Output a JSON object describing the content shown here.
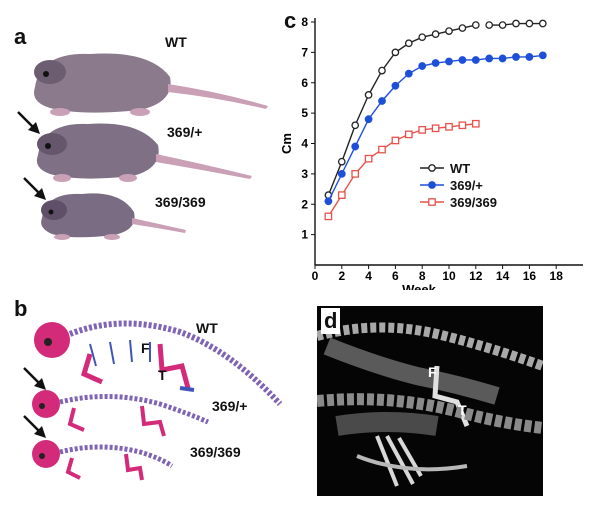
{
  "panels": {
    "a": {
      "letter": "a",
      "labels": [
        "WT",
        "369/+",
        "369/369"
      ]
    },
    "b": {
      "letter": "b",
      "labels": [
        "WT",
        "369/+",
        "369/369"
      ],
      "bone_F": "F",
      "bone_T": "T"
    },
    "c": {
      "letter": "c"
    },
    "d": {
      "letter": "d",
      "bone_F": "F",
      "bone_T": "T"
    }
  },
  "colors": {
    "wt": "#222222",
    "het": "#1e4fd8",
    "hom": "#e8524a",
    "bone": "#d42a7a",
    "cartilage": "#3f56b8"
  },
  "chart_data": {
    "type": "line",
    "xlabel": "Week",
    "ylabel": "Cm",
    "xlim": [
      0,
      20
    ],
    "ylim": [
      0,
      8
    ],
    "xticks": [
      0,
      2,
      4,
      6,
      8,
      10,
      12,
      14,
      16,
      18
    ],
    "yticks": [
      1,
      2,
      3,
      4,
      5,
      6,
      7,
      8
    ],
    "legend_position": "center",
    "series": [
      {
        "name": "WT",
        "marker": "open-circle",
        "color": "#222222",
        "segments": [
          {
            "x": [
              1,
              2,
              3,
              4,
              5,
              6,
              7,
              8,
              9,
              10,
              11,
              12
            ],
            "y": [
              2.3,
              3.4,
              4.6,
              5.6,
              6.4,
              7.0,
              7.3,
              7.5,
              7.6,
              7.7,
              7.8,
              7.9
            ]
          },
          {
            "x": [
              13,
              14,
              15,
              16,
              17
            ],
            "y": [
              7.9,
              7.9,
              7.95,
              7.95,
              7.95
            ]
          }
        ]
      },
      {
        "name": "369/+",
        "marker": "filled-circle",
        "color": "#1e4fd8",
        "segments": [
          {
            "x": [
              1,
              2,
              3,
              4,
              5,
              6,
              7,
              8,
              9,
              10,
              11,
              12,
              13,
              14,
              15,
              16,
              17
            ],
            "y": [
              2.1,
              3.0,
              3.9,
              4.8,
              5.4,
              5.9,
              6.3,
              6.55,
              6.65,
              6.7,
              6.75,
              6.75,
              6.8,
              6.8,
              6.85,
              6.85,
              6.9
            ]
          }
        ]
      },
      {
        "name": "369/369",
        "marker": "open-square",
        "color": "#e8524a",
        "segments": [
          {
            "x": [
              1,
              2,
              3,
              4,
              5,
              6,
              7,
              8,
              9,
              10,
              11,
              12
            ],
            "y": [
              1.6,
              2.3,
              3.0,
              3.5,
              3.8,
              4.1,
              4.3,
              4.45,
              4.5,
              4.55,
              4.6,
              4.65
            ]
          }
        ]
      }
    ]
  }
}
